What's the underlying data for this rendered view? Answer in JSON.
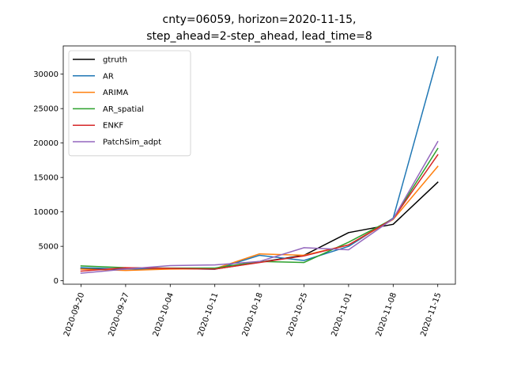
{
  "chart_data": {
    "type": "line",
    "title_lines": [
      "cnty=06059, horizon=2020-11-15,",
      "step_ahead=2-step_ahead, lead_time=8"
    ],
    "xlabel": "",
    "ylabel": "",
    "categories": [
      "2020-09-20",
      "2020-09-27",
      "2020-10-04",
      "2020-10-11",
      "2020-10-18",
      "2020-10-25",
      "2020-11-01",
      "2020-11-08",
      "2020-11-15"
    ],
    "yticks": [
      0,
      5000,
      10000,
      15000,
      20000,
      25000,
      30000
    ],
    "ylim": [
      -500,
      34100
    ],
    "grid": false,
    "legend_position": "top-left",
    "series": [
      {
        "name": "gtruth",
        "color": "#000000",
        "values": [
          1750,
          1700,
          1800,
          1700,
          2700,
          3700,
          7000,
          8200,
          14300
        ]
      },
      {
        "name": "AR",
        "color": "#1f77b4",
        "values": [
          1900,
          1700,
          1800,
          1650,
          3700,
          2950,
          5000,
          9100,
          32500
        ]
      },
      {
        "name": "ARIMA",
        "color": "#ff7f0e",
        "values": [
          1700,
          1500,
          1700,
          1750,
          3900,
          3700,
          5200,
          8900,
          16600
        ]
      },
      {
        "name": "AR_spatial",
        "color": "#2ca02c",
        "values": [
          2150,
          1900,
          1850,
          1850,
          2800,
          2650,
          5600,
          9000,
          19200
        ]
      },
      {
        "name": "ENKF",
        "color": "#d62728",
        "values": [
          1400,
          1900,
          1800,
          1700,
          2650,
          3600,
          5200,
          9000,
          18300
        ]
      },
      {
        "name": "PatchSim_adpt",
        "color": "#9467bd",
        "values": [
          1100,
          1700,
          2200,
          2300,
          2800,
          4800,
          4500,
          9000,
          20200
        ]
      }
    ]
  }
}
